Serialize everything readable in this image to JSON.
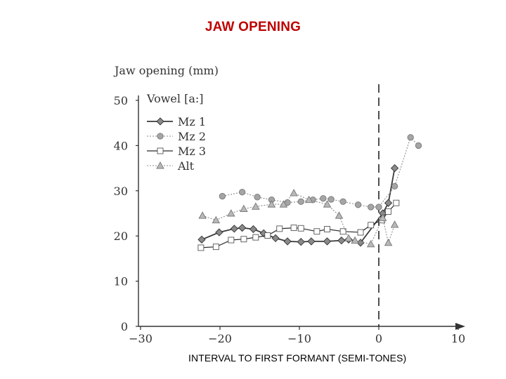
{
  "title": "JAW OPENING",
  "x_caption": "INTERVAL TO FIRST FORMANT (SEMI-TONES)",
  "chart_data": {
    "type": "line",
    "ylabel": "Jaw opening (mm)",
    "xlabel": "INTERVAL TO FIRST FORMANT (SEMI-TONES)",
    "legend_title": "Vowel [a:]",
    "legend_position": "top-left",
    "xlim": [
      -30,
      10
    ],
    "ylim": [
      0,
      50
    ],
    "x_ticks": [
      {
        "value": -30,
        "label": "−30"
      },
      {
        "value": -20,
        "label": "−20"
      },
      {
        "value": -10,
        "label": "−10"
      },
      {
        "value": 0,
        "label": "0"
      },
      {
        "value": 10,
        "label": "10"
      }
    ],
    "y_ticks": [
      {
        "value": 0,
        "label": "0"
      },
      {
        "value": 10,
        "label": "10"
      },
      {
        "value": 20,
        "label": "20"
      },
      {
        "value": 30,
        "label": "30"
      },
      {
        "value": 40,
        "label": "40"
      },
      {
        "value": 50,
        "label": "50"
      }
    ],
    "reference_line": {
      "x": 0,
      "style": "dashed"
    },
    "grid": false,
    "series": [
      {
        "name": "Mz 1",
        "marker": "diamond",
        "line": "solid-dark",
        "points": [
          [
            -22.3,
            19.2
          ],
          [
            -20.1,
            20.8
          ],
          [
            -18.2,
            21.6
          ],
          [
            -17.2,
            21.8
          ],
          [
            -15.8,
            21.5
          ],
          [
            -14.5,
            20.6
          ],
          [
            -13.0,
            19.5
          ],
          [
            -11.5,
            18.8
          ],
          [
            -9.8,
            18.7
          ],
          [
            -8.5,
            18.8
          ],
          [
            -6.5,
            18.8
          ],
          [
            -4.7,
            19.0
          ],
          [
            -3.8,
            19.2
          ],
          [
            -2.3,
            18.5
          ],
          [
            0.5,
            25.0
          ],
          [
            1.2,
            27.3
          ],
          [
            2.0,
            35.0
          ]
        ]
      },
      {
        "name": "Mz 2",
        "marker": "circle",
        "line": "dotted-gray",
        "points": [
          [
            -19.7,
            28.8
          ],
          [
            -17.2,
            29.7
          ],
          [
            -15.3,
            28.6
          ],
          [
            -13.5,
            28.0
          ],
          [
            -11.5,
            27.4
          ],
          [
            -9.8,
            27.6
          ],
          [
            -8.3,
            28.0
          ],
          [
            -7.0,
            28.3
          ],
          [
            -6.0,
            28.1
          ],
          [
            -4.5,
            27.6
          ],
          [
            -2.6,
            26.9
          ],
          [
            -1.0,
            26.4
          ],
          [
            0.0,
            26.4
          ],
          [
            2.0,
            31.0
          ],
          [
            4.0,
            41.8
          ],
          [
            5.0,
            40.0
          ]
        ]
      },
      {
        "name": "Mz 3",
        "marker": "square",
        "line": "solid",
        "points": [
          [
            -22.4,
            17.4
          ],
          [
            -20.5,
            17.6
          ],
          [
            -18.6,
            19.1
          ],
          [
            -17.0,
            19.3
          ],
          [
            -15.5,
            19.7
          ],
          [
            -14.0,
            20.1
          ],
          [
            -12.5,
            21.6
          ],
          [
            -10.7,
            21.8
          ],
          [
            -9.8,
            21.7
          ],
          [
            -7.8,
            21.0
          ],
          [
            -6.5,
            21.5
          ],
          [
            -4.5,
            21.0
          ],
          [
            -2.3,
            20.8
          ],
          [
            -1.0,
            22.4
          ],
          [
            0.4,
            23.5
          ],
          [
            1.2,
            25.4
          ],
          [
            2.2,
            27.3
          ]
        ]
      },
      {
        "name": "Alt",
        "marker": "triangle",
        "line": "dotted-gray",
        "points": [
          [
            -22.2,
            24.5
          ],
          [
            -20.5,
            23.5
          ],
          [
            -18.6,
            25.0
          ],
          [
            -17.0,
            26.0
          ],
          [
            -15.5,
            26.5
          ],
          [
            -13.5,
            27.0
          ],
          [
            -12.0,
            27.0
          ],
          [
            -10.7,
            29.5
          ],
          [
            -8.8,
            28.0
          ],
          [
            -6.5,
            27.0
          ],
          [
            -5.0,
            24.5
          ],
          [
            -3.8,
            19.5
          ],
          [
            -3.0,
            19.0
          ],
          [
            -1.0,
            18.2
          ],
          [
            0.5,
            24.0
          ],
          [
            1.2,
            18.5
          ],
          [
            2.0,
            22.5
          ]
        ]
      }
    ]
  },
  "style": {
    "title_color": "#c00000",
    "series_colors": {
      "Mz 1": "#3a3a3a",
      "Mz 2": "#8c8c8c",
      "Mz 3": "#2a2a2a",
      "Alt": "#8c8c8c"
    },
    "marker_fills": {
      "Mz 1": "#8a8a8a",
      "Mz 2": "#a5a5a5",
      "Mz 3": "#ffffff",
      "Alt": "#b8b8b8"
    }
  }
}
